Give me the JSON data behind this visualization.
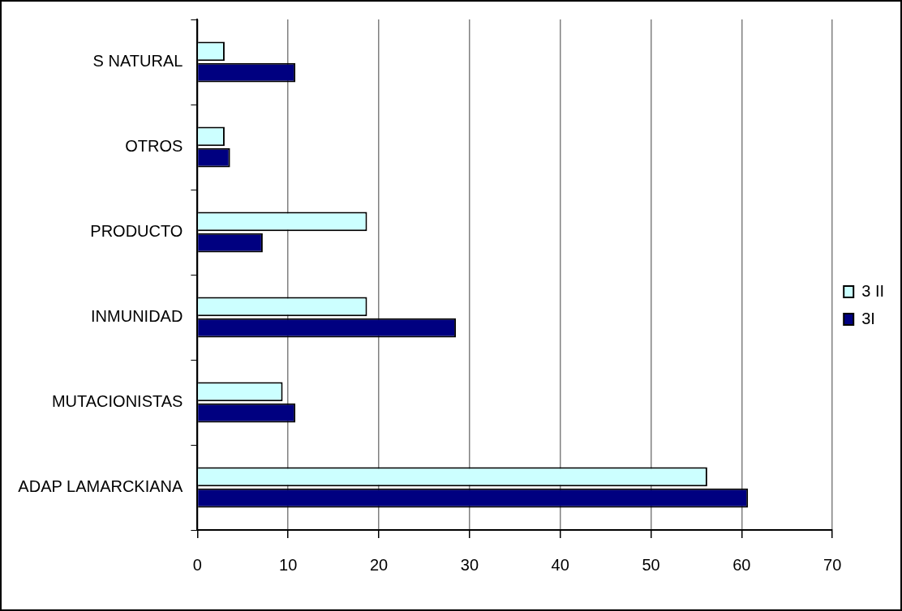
{
  "chart_data": {
    "type": "bar",
    "orientation": "horizontal",
    "categories": [
      "S NATURAL",
      "OTROS",
      "PRODUCTO",
      "INMUNIDAD",
      "MUTACIONISTAS",
      "ADAP LAMARCKIANA"
    ],
    "series": [
      {
        "name": "3 II",
        "color": "#ccffff",
        "values": [
          3.0,
          3.0,
          18.7,
          18.7,
          9.4,
          56.2
        ]
      },
      {
        "name": "3I",
        "color": "#000080",
        "values": [
          10.8,
          3.6,
          7.2,
          28.5,
          10.8,
          60.7
        ]
      }
    ],
    "xlim": [
      0,
      70
    ],
    "xticks": [
      0,
      10,
      20,
      30,
      40,
      50,
      60,
      70
    ],
    "grid": "x",
    "legend": "right"
  }
}
